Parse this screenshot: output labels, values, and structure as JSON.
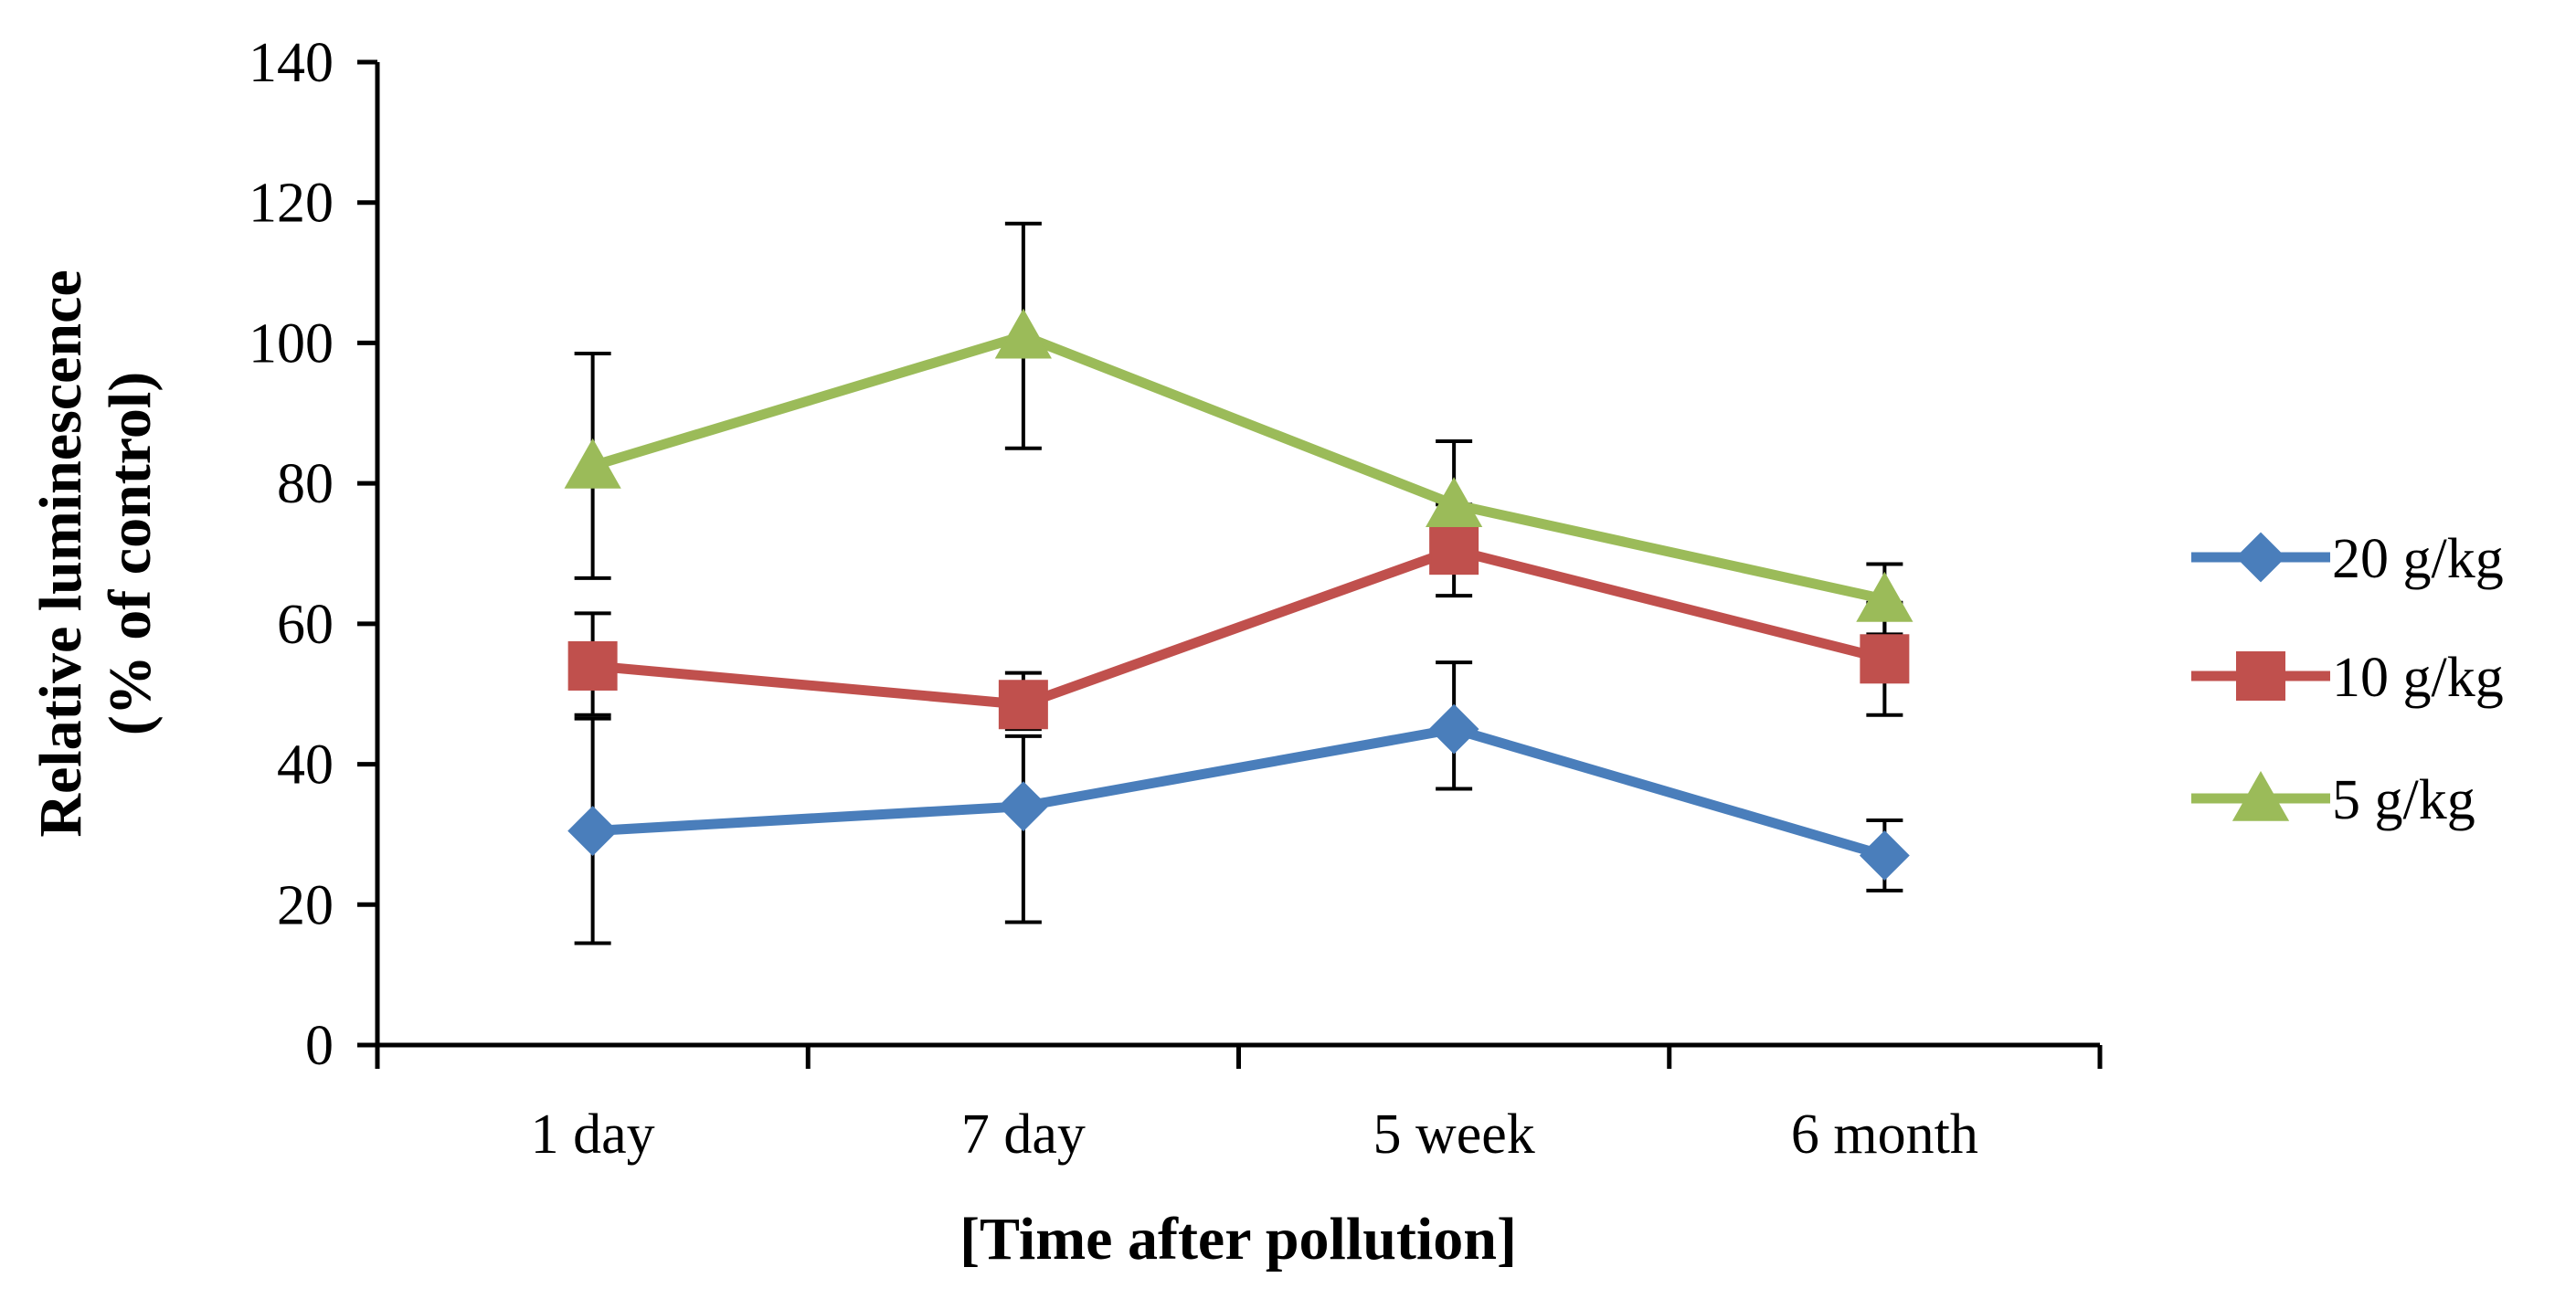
{
  "chart_data": {
    "type": "line",
    "title": "",
    "xlabel": "[Time after pollution]",
    "ylabel_lines": [
      "Relative luminescence",
      "(% of control)"
    ],
    "categories": [
      "1 day",
      "7 day",
      "5 week",
      "6 month"
    ],
    "ylim": [
      0,
      140
    ],
    "yticks": [
      0,
      20,
      40,
      60,
      80,
      100,
      120,
      140
    ],
    "grid": false,
    "legend_position": "right",
    "series": [
      {
        "name": "20 g/kg",
        "marker": "diamond",
        "color": "#4a7ebb",
        "values": [
          30.5,
          34,
          45,
          27
        ],
        "err_low": [
          14.5,
          17.5,
          36.5,
          22
        ],
        "err_high": [
          46.5,
          44,
          54.5,
          32
        ]
      },
      {
        "name": "10 g/kg",
        "marker": "square",
        "color": "#c0504d",
        "values": [
          54,
          48.5,
          70.5,
          55
        ],
        "err_low": [
          47,
          45,
          64,
          47
        ],
        "err_high": [
          61.5,
          53,
          77,
          63
        ]
      },
      {
        "name": "5 g/kg",
        "marker": "triangle",
        "color": "#9bbb59",
        "values": [
          82.5,
          101,
          77,
          63.5
        ],
        "err_low": [
          66.5,
          85,
          68,
          58.5
        ],
        "err_high": [
          98.5,
          117,
          86,
          68.5
        ]
      }
    ]
  }
}
